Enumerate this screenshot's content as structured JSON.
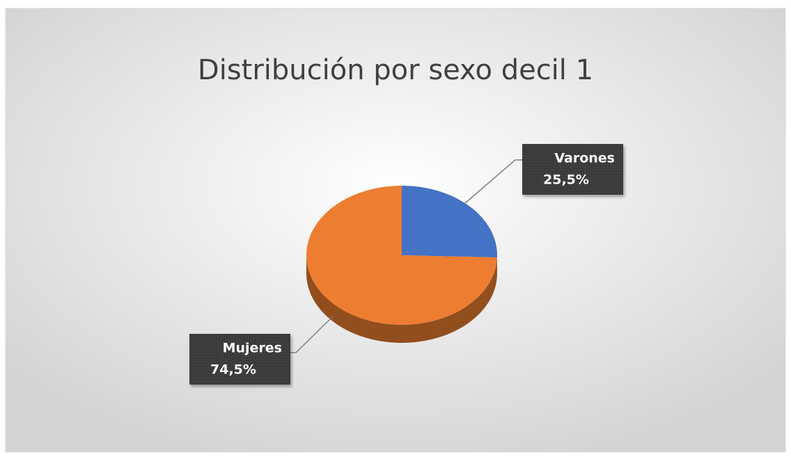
{
  "chart_data": {
    "type": "pie",
    "title": "Distribución por sexo decil 1",
    "categories": [
      "Varones",
      "Mujeres"
    ],
    "values": [
      25.5,
      74.5
    ],
    "value_labels": [
      "25,5%",
      "74,5%"
    ],
    "colors": [
      "#4472c4",
      "#ed7d31"
    ]
  }
}
